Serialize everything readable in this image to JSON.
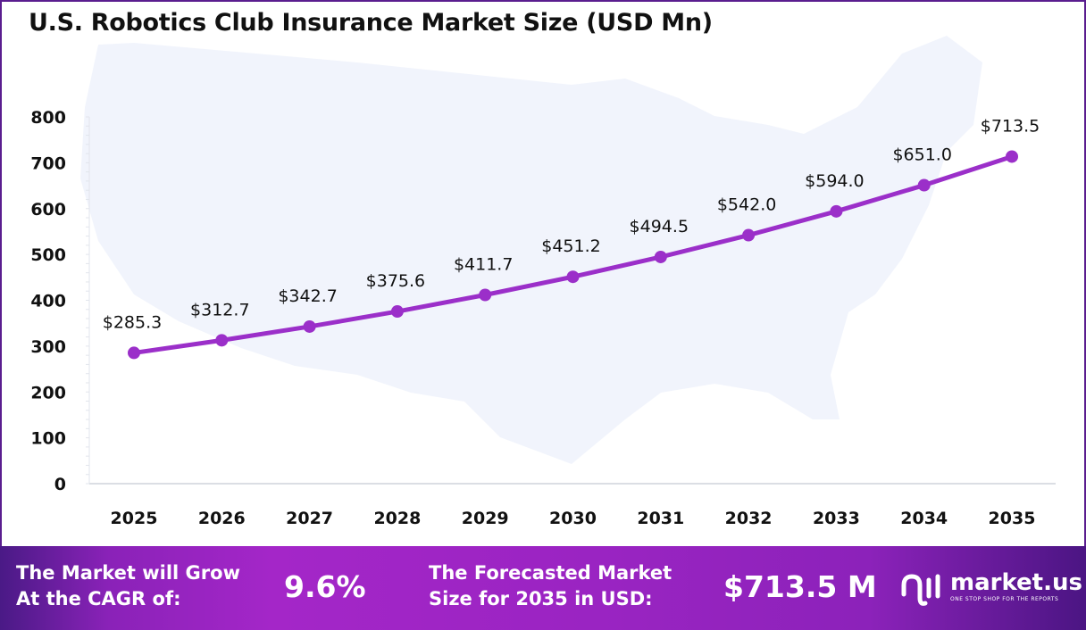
{
  "title": "U.S. Robotics Club Insurance Market Size (USD Mn)",
  "chart_data": {
    "type": "line",
    "title": "U.S. Robotics Club Insurance Market Size (USD Mn)",
    "categories": [
      "2025",
      "2026",
      "2027",
      "2028",
      "2029",
      "2030",
      "2031",
      "2032",
      "2033",
      "2034",
      "2035"
    ],
    "values": [
      285.3,
      312.7,
      342.7,
      375.6,
      411.7,
      451.2,
      494.5,
      542.0,
      594.0,
      651.0,
      713.5
    ],
    "data_labels": [
      "$285.3",
      "$312.7",
      "$342.7",
      "$375.6",
      "$411.7",
      "$451.2",
      "$494.5",
      "$542.0",
      "$594.0",
      "$651.0",
      "$713.5"
    ],
    "yticks": [
      "0",
      "100",
      "200",
      "300",
      "400",
      "500",
      "600",
      "700",
      "800"
    ],
    "ylim": [
      0,
      800
    ],
    "grid": false,
    "line_color": "#9b2fc9",
    "background_image": "us-map-silhouette"
  },
  "footer": {
    "cagr_label_1": "The Market will Grow",
    "cagr_label_2": "At the CAGR of:",
    "cagr_value": "9.6%",
    "forecast_label_1": "The Forecasted Market",
    "forecast_label_2": "Size for 2035 in USD:",
    "forecast_value": "$713.5 M",
    "logo_name": "market.us",
    "logo_tagline": "ONE STOP SHOP FOR THE REPORTS"
  }
}
